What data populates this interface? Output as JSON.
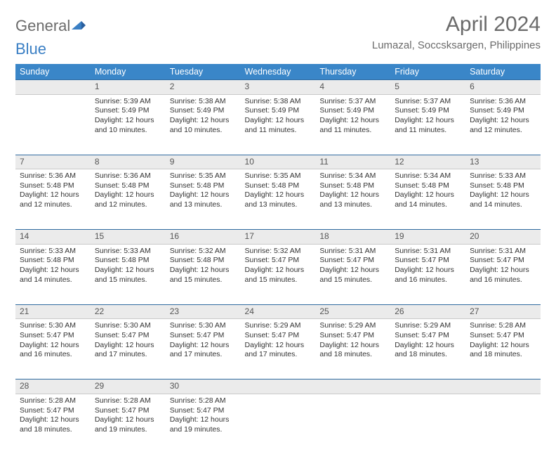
{
  "logo": {
    "text1": "General",
    "text2": "Blue"
  },
  "title": "April 2024",
  "location": "Lumazal, Soccsksargen, Philippines",
  "weekdays": [
    "Sunday",
    "Monday",
    "Tuesday",
    "Wednesday",
    "Thursday",
    "Friday",
    "Saturday"
  ],
  "colors": {
    "header_bg": "#3a86c8",
    "header_text": "#ffffff",
    "daynum_bg": "#ebebeb",
    "daynum_border": "#2f6aa0",
    "body_text": "#333333",
    "title_text": "#6b6b6b",
    "logo_blue": "#3a7fc4"
  },
  "weeks": [
    [
      null,
      {
        "n": "1",
        "sr": "Sunrise: 5:39 AM",
        "ss": "Sunset: 5:49 PM",
        "d1": "Daylight: 12 hours",
        "d2": "and 10 minutes."
      },
      {
        "n": "2",
        "sr": "Sunrise: 5:38 AM",
        "ss": "Sunset: 5:49 PM",
        "d1": "Daylight: 12 hours",
        "d2": "and 10 minutes."
      },
      {
        "n": "3",
        "sr": "Sunrise: 5:38 AM",
        "ss": "Sunset: 5:49 PM",
        "d1": "Daylight: 12 hours",
        "d2": "and 11 minutes."
      },
      {
        "n": "4",
        "sr": "Sunrise: 5:37 AM",
        "ss": "Sunset: 5:49 PM",
        "d1": "Daylight: 12 hours",
        "d2": "and 11 minutes."
      },
      {
        "n": "5",
        "sr": "Sunrise: 5:37 AM",
        "ss": "Sunset: 5:49 PM",
        "d1": "Daylight: 12 hours",
        "d2": "and 11 minutes."
      },
      {
        "n": "6",
        "sr": "Sunrise: 5:36 AM",
        "ss": "Sunset: 5:49 PM",
        "d1": "Daylight: 12 hours",
        "d2": "and 12 minutes."
      }
    ],
    [
      {
        "n": "7",
        "sr": "Sunrise: 5:36 AM",
        "ss": "Sunset: 5:48 PM",
        "d1": "Daylight: 12 hours",
        "d2": "and 12 minutes."
      },
      {
        "n": "8",
        "sr": "Sunrise: 5:36 AM",
        "ss": "Sunset: 5:48 PM",
        "d1": "Daylight: 12 hours",
        "d2": "and 12 minutes."
      },
      {
        "n": "9",
        "sr": "Sunrise: 5:35 AM",
        "ss": "Sunset: 5:48 PM",
        "d1": "Daylight: 12 hours",
        "d2": "and 13 minutes."
      },
      {
        "n": "10",
        "sr": "Sunrise: 5:35 AM",
        "ss": "Sunset: 5:48 PM",
        "d1": "Daylight: 12 hours",
        "d2": "and 13 minutes."
      },
      {
        "n": "11",
        "sr": "Sunrise: 5:34 AM",
        "ss": "Sunset: 5:48 PM",
        "d1": "Daylight: 12 hours",
        "d2": "and 13 minutes."
      },
      {
        "n": "12",
        "sr": "Sunrise: 5:34 AM",
        "ss": "Sunset: 5:48 PM",
        "d1": "Daylight: 12 hours",
        "d2": "and 14 minutes."
      },
      {
        "n": "13",
        "sr": "Sunrise: 5:33 AM",
        "ss": "Sunset: 5:48 PM",
        "d1": "Daylight: 12 hours",
        "d2": "and 14 minutes."
      }
    ],
    [
      {
        "n": "14",
        "sr": "Sunrise: 5:33 AM",
        "ss": "Sunset: 5:48 PM",
        "d1": "Daylight: 12 hours",
        "d2": "and 14 minutes."
      },
      {
        "n": "15",
        "sr": "Sunrise: 5:33 AM",
        "ss": "Sunset: 5:48 PM",
        "d1": "Daylight: 12 hours",
        "d2": "and 15 minutes."
      },
      {
        "n": "16",
        "sr": "Sunrise: 5:32 AM",
        "ss": "Sunset: 5:48 PM",
        "d1": "Daylight: 12 hours",
        "d2": "and 15 minutes."
      },
      {
        "n": "17",
        "sr": "Sunrise: 5:32 AM",
        "ss": "Sunset: 5:47 PM",
        "d1": "Daylight: 12 hours",
        "d2": "and 15 minutes."
      },
      {
        "n": "18",
        "sr": "Sunrise: 5:31 AM",
        "ss": "Sunset: 5:47 PM",
        "d1": "Daylight: 12 hours",
        "d2": "and 15 minutes."
      },
      {
        "n": "19",
        "sr": "Sunrise: 5:31 AM",
        "ss": "Sunset: 5:47 PM",
        "d1": "Daylight: 12 hours",
        "d2": "and 16 minutes."
      },
      {
        "n": "20",
        "sr": "Sunrise: 5:31 AM",
        "ss": "Sunset: 5:47 PM",
        "d1": "Daylight: 12 hours",
        "d2": "and 16 minutes."
      }
    ],
    [
      {
        "n": "21",
        "sr": "Sunrise: 5:30 AM",
        "ss": "Sunset: 5:47 PM",
        "d1": "Daylight: 12 hours",
        "d2": "and 16 minutes."
      },
      {
        "n": "22",
        "sr": "Sunrise: 5:30 AM",
        "ss": "Sunset: 5:47 PM",
        "d1": "Daylight: 12 hours",
        "d2": "and 17 minutes."
      },
      {
        "n": "23",
        "sr": "Sunrise: 5:30 AM",
        "ss": "Sunset: 5:47 PM",
        "d1": "Daylight: 12 hours",
        "d2": "and 17 minutes."
      },
      {
        "n": "24",
        "sr": "Sunrise: 5:29 AM",
        "ss": "Sunset: 5:47 PM",
        "d1": "Daylight: 12 hours",
        "d2": "and 17 minutes."
      },
      {
        "n": "25",
        "sr": "Sunrise: 5:29 AM",
        "ss": "Sunset: 5:47 PM",
        "d1": "Daylight: 12 hours",
        "d2": "and 18 minutes."
      },
      {
        "n": "26",
        "sr": "Sunrise: 5:29 AM",
        "ss": "Sunset: 5:47 PM",
        "d1": "Daylight: 12 hours",
        "d2": "and 18 minutes."
      },
      {
        "n": "27",
        "sr": "Sunrise: 5:28 AM",
        "ss": "Sunset: 5:47 PM",
        "d1": "Daylight: 12 hours",
        "d2": "and 18 minutes."
      }
    ],
    [
      {
        "n": "28",
        "sr": "Sunrise: 5:28 AM",
        "ss": "Sunset: 5:47 PM",
        "d1": "Daylight: 12 hours",
        "d2": "and 18 minutes."
      },
      {
        "n": "29",
        "sr": "Sunrise: 5:28 AM",
        "ss": "Sunset: 5:47 PM",
        "d1": "Daylight: 12 hours",
        "d2": "and 19 minutes."
      },
      {
        "n": "30",
        "sr": "Sunrise: 5:28 AM",
        "ss": "Sunset: 5:47 PM",
        "d1": "Daylight: 12 hours",
        "d2": "and 19 minutes."
      },
      null,
      null,
      null,
      null
    ]
  ]
}
